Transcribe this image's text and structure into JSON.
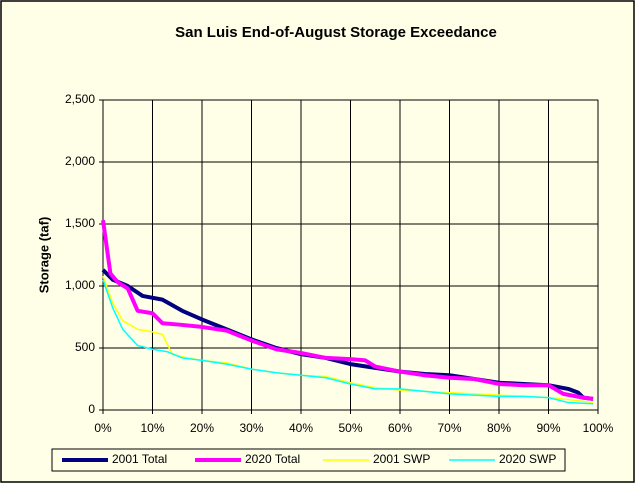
{
  "chart_data": {
    "type": "line",
    "title": "San Luis End-of-August Storage Exceedance",
    "y_label": "Storage (taf)",
    "xlim": [
      0,
      100
    ],
    "xticks": [
      {
        "value": 0,
        "label": "0%"
      },
      {
        "value": 10,
        "label": "10%"
      },
      {
        "value": 20,
        "label": "20%"
      },
      {
        "value": 30,
        "label": "30%"
      },
      {
        "value": 40,
        "label": "40%"
      },
      {
        "value": 50,
        "label": "50%"
      },
      {
        "value": 60,
        "label": "60%"
      },
      {
        "value": 70,
        "label": "70%"
      },
      {
        "value": 80,
        "label": "80%"
      },
      {
        "value": 90,
        "label": "90%"
      },
      {
        "value": 100,
        "label": "100%"
      }
    ],
    "ylim": [
      0,
      2500
    ],
    "yticks": [
      0,
      500,
      {
        "value": 1000,
        "label": "1,000"
      },
      {
        "value": 1500,
        "label": "1,500"
      },
      {
        "value": 2000,
        "label": "2,000"
      },
      {
        "value": 2500,
        "label": "2,500"
      }
    ],
    "grid": true,
    "legend": "bottom",
    "series": [
      {
        "name": "2001 Total",
        "color": "#000080",
        "x": [
          0,
          2,
          5,
          8,
          12,
          16,
          20,
          25,
          30,
          35,
          40,
          45,
          50,
          55,
          60,
          65,
          70,
          75,
          80,
          85,
          90,
          94,
          96,
          97,
          99
        ],
        "values": [
          1130,
          1050,
          1000,
          920,
          890,
          800,
          730,
          650,
          570,
          500,
          450,
          420,
          370,
          340,
          310,
          290,
          280,
          250,
          220,
          210,
          200,
          170,
          140,
          100,
          90
        ]
      },
      {
        "name": "2020 Total",
        "color": "#ff00ff",
        "x": [
          0,
          1.5,
          3,
          5,
          7,
          10,
          12,
          15,
          20,
          25,
          30,
          35,
          40,
          45,
          50,
          53,
          55,
          60,
          65,
          70,
          75,
          80,
          85,
          90,
          93,
          97,
          99
        ],
        "values": [
          1530,
          1100,
          1030,
          980,
          800,
          780,
          700,
          690,
          670,
          640,
          560,
          490,
          460,
          420,
          410,
          400,
          350,
          310,
          280,
          260,
          250,
          210,
          200,
          200,
          130,
          100,
          90
        ]
      },
      {
        "name": "2001 SWP",
        "color": "#ffff00",
        "x": [
          0,
          2,
          4,
          7,
          10,
          12,
          14,
          17,
          20,
          25,
          30,
          35,
          40,
          45,
          50,
          55,
          60,
          65,
          70,
          75,
          80,
          85,
          90,
          95,
          99
        ],
        "values": [
          1080,
          860,
          720,
          650,
          630,
          610,
          450,
          420,
          400,
          380,
          330,
          300,
          280,
          270,
          220,
          180,
          160,
          150,
          140,
          130,
          120,
          110,
          100,
          80,
          60
        ]
      },
      {
        "name": "2020 SWP",
        "color": "#00ffff",
        "x": [
          0,
          2,
          4,
          7,
          10,
          13,
          16,
          20,
          25,
          30,
          35,
          40,
          45,
          50,
          55,
          60,
          65,
          70,
          75,
          80,
          85,
          90,
          94,
          99
        ],
        "values": [
          1050,
          820,
          650,
          520,
          490,
          470,
          420,
          400,
          370,
          330,
          300,
          280,
          260,
          210,
          170,
          170,
          150,
          130,
          120,
          110,
          110,
          100,
          60,
          50
        ]
      }
    ]
  }
}
